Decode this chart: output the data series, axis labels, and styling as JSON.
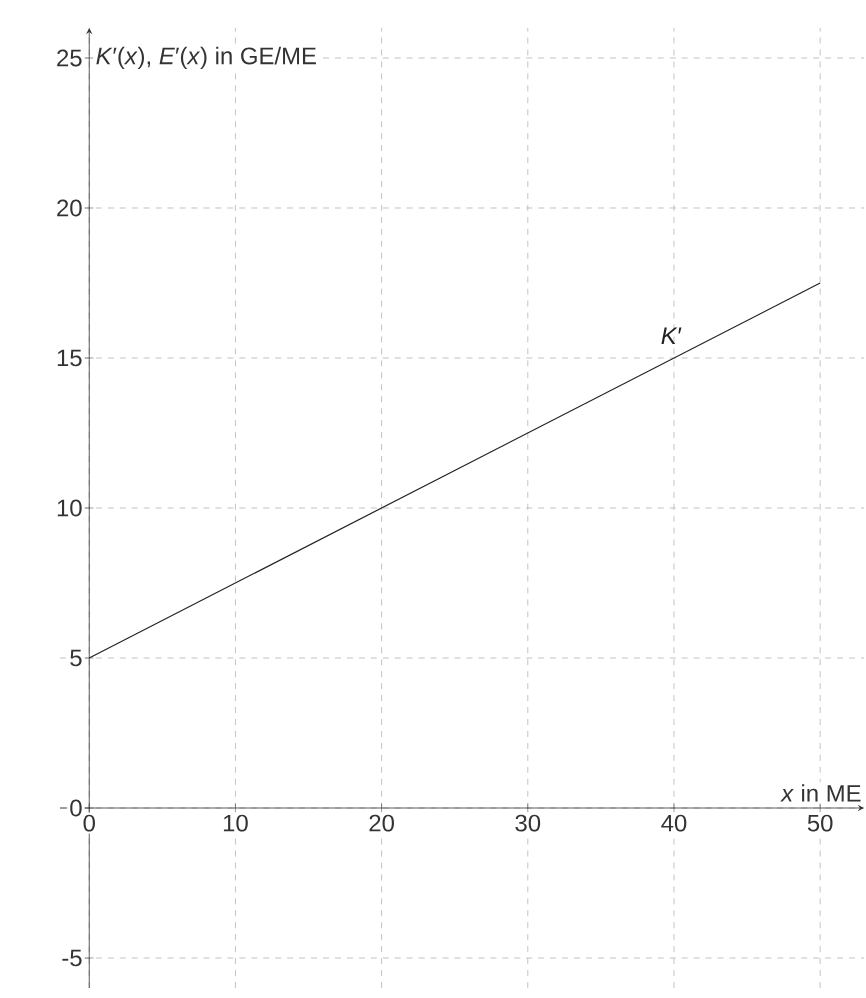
{
  "chart_data": {
    "type": "line",
    "xlabel": "*x* in ME",
    "ylabel": "*K*′(*x*), *E*′(*x*) in GE/ME",
    "x": [
      0,
      50
    ],
    "series": [
      {
        "name": "*K*′",
        "color": "#222222",
        "values": [
          5,
          17.5
        ]
      }
    ],
    "xlim": [
      -2,
      53
    ],
    "ylim": [
      -6,
      26
    ],
    "xticks": [
      0,
      10,
      20,
      30,
      40,
      50
    ],
    "yticks": [
      -5,
      0,
      5,
      10,
      15,
      20,
      25
    ],
    "grid": true,
    "marker": "none",
    "line_style": "solid"
  }
}
